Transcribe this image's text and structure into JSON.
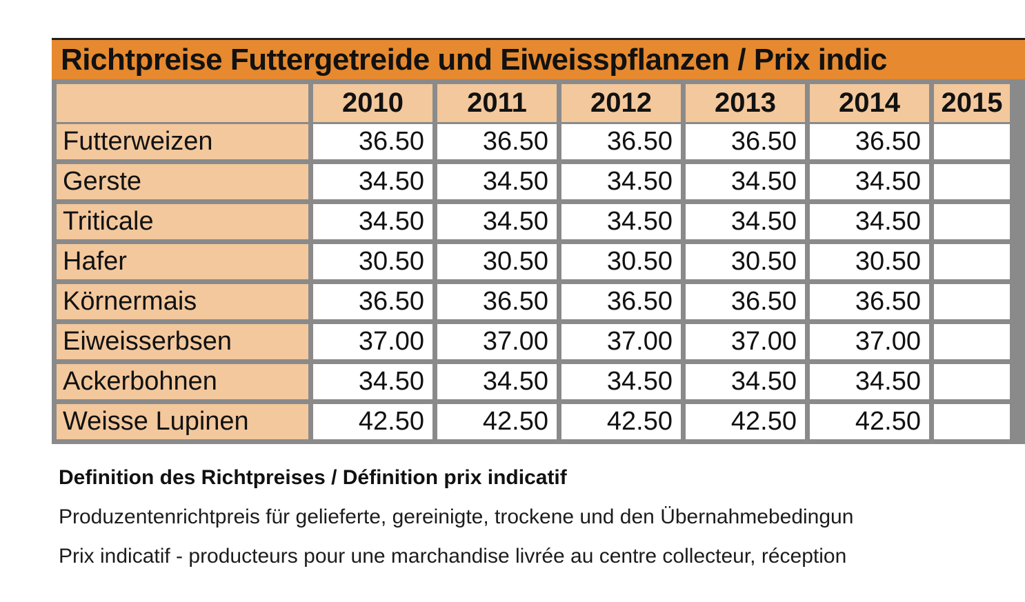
{
  "table": {
    "title": "Richtpreise Futtergetreide und Eiweisspflanzen / Prix indic",
    "columns": [
      "",
      "2010",
      "2011",
      "2012",
      "2013",
      "2014",
      "2015"
    ],
    "rows": [
      {
        "label": "Futterweizen",
        "values": [
          "36.50",
          "36.50",
          "36.50",
          "36.50",
          "36.50",
          ""
        ]
      },
      {
        "label": "Gerste",
        "values": [
          "34.50",
          "34.50",
          "34.50",
          "34.50",
          "34.50",
          ""
        ]
      },
      {
        "label": "Triticale",
        "values": [
          "34.50",
          "34.50",
          "34.50",
          "34.50",
          "34.50",
          ""
        ]
      },
      {
        "label": "Hafer",
        "values": [
          "30.50",
          "30.50",
          "30.50",
          "30.50",
          "30.50",
          ""
        ]
      },
      {
        "label": "Körnermais",
        "values": [
          "36.50",
          "36.50",
          "36.50",
          "36.50",
          "36.50",
          ""
        ]
      },
      {
        "label": "Eiweisserbsen",
        "values": [
          "37.00",
          "37.00",
          "37.00",
          "37.00",
          "37.00",
          ""
        ]
      },
      {
        "label": "Ackerbohnen",
        "values": [
          "34.50",
          "34.50",
          "34.50",
          "34.50",
          "34.50",
          ""
        ]
      },
      {
        "label": "Weisse Lupinen",
        "values": [
          "42.50",
          "42.50",
          "42.50",
          "42.50",
          "42.50",
          ""
        ]
      }
    ]
  },
  "notes": {
    "heading": "Definition des Richtpreises / Définition prix indicatif",
    "line_de": "Produzentenrichtpreis für gelieferte, gereinigte, trockene und den Übernahmebedingun",
    "line_fr": "Prix indicatif - producteurs pour une marchandise livrée au centre collecteur, réception"
  },
  "colors": {
    "title_bg": "#E6892F",
    "shaded_cell_bg": "#F3C89D",
    "grid_border": "#8A8A8A",
    "top_line": "#1f1f1f",
    "text": "#111111"
  }
}
